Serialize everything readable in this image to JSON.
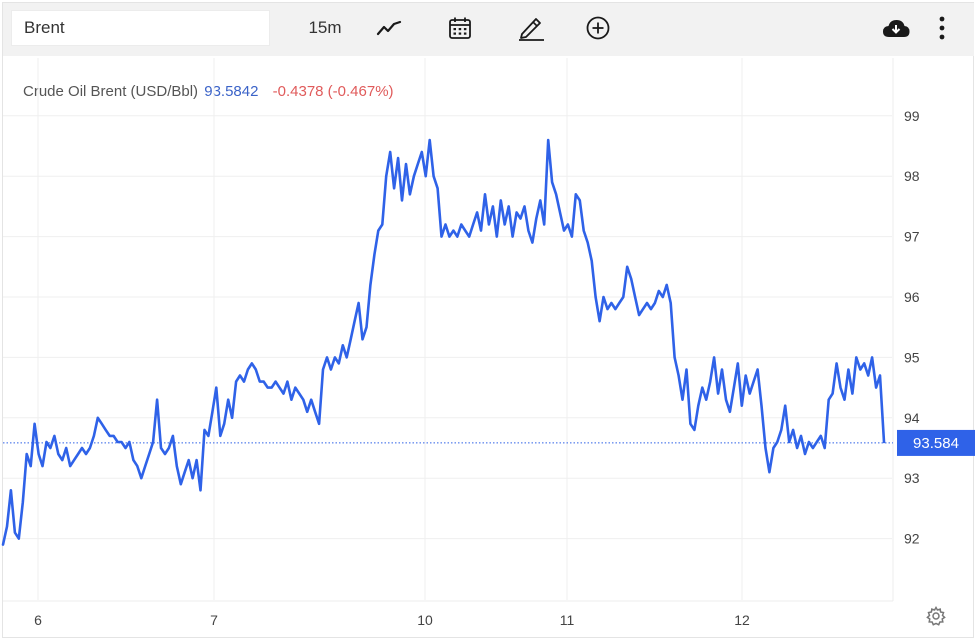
{
  "toolbar": {
    "symbol_value": "Brent",
    "interval_label": "15m",
    "icons": [
      "chart-type-icon",
      "calendar-icon",
      "draw-pencil-icon",
      "add-circle-icon",
      "cloud-download-icon",
      "more-vertical-icon"
    ]
  },
  "legend": {
    "name": "Crude Oil Brent (USD/Bbl)",
    "value": "93.5842",
    "change": "-0.4378 (-0.467%)"
  },
  "colors": {
    "line": "#2f62e8",
    "price_tag": "#2f62e8",
    "change_negative": "#e05b5b",
    "legend_value": "#3b63c8",
    "grid": "#efefef",
    "toolbar_bg": "#f2f2f2"
  },
  "chart_data": {
    "type": "line",
    "title": "Crude Oil Brent (USD/Bbl)",
    "interval": "15m",
    "x_ticks": [
      "6",
      "7",
      "10",
      "11",
      "12"
    ],
    "y_ticks": [
      "92",
      "93",
      "94",
      "95",
      "96",
      "97",
      "98",
      "99"
    ],
    "ylim": [
      91,
      99.7
    ],
    "grid": true,
    "last_price_tag": "93.584",
    "last_price": 93.584,
    "series": [
      {
        "name": "Crude Oil Brent (USD/Bbl)",
        "x_unit": "bar index (15m bars)",
        "points": [
          [
            0,
            91.9
          ],
          [
            1,
            92.2
          ],
          [
            2,
            92.8
          ],
          [
            3,
            92.1
          ],
          [
            4,
            92.0
          ],
          [
            5,
            92.6
          ],
          [
            6,
            93.4
          ],
          [
            7,
            93.2
          ],
          [
            8,
            93.9
          ],
          [
            9,
            93.4
          ],
          [
            10,
            93.2
          ],
          [
            11,
            93.6
          ],
          [
            12,
            93.5
          ],
          [
            13,
            93.7
          ],
          [
            14,
            93.4
          ],
          [
            15,
            93.3
          ],
          [
            16,
            93.5
          ],
          [
            17,
            93.2
          ],
          [
            18,
            93.3
          ],
          [
            19,
            93.4
          ],
          [
            20,
            93.5
          ],
          [
            21,
            93.4
          ],
          [
            22,
            93.5
          ],
          [
            23,
            93.7
          ],
          [
            24,
            94.0
          ],
          [
            25,
            93.9
          ],
          [
            26,
            93.8
          ],
          [
            27,
            93.7
          ],
          [
            28,
            93.7
          ],
          [
            29,
            93.6
          ],
          [
            30,
            93.6
          ],
          [
            31,
            93.5
          ],
          [
            32,
            93.6
          ],
          [
            33,
            93.3
          ],
          [
            34,
            93.2
          ],
          [
            35,
            93.0
          ],
          [
            36,
            93.2
          ],
          [
            37,
            93.4
          ],
          [
            38,
            93.6
          ],
          [
            39,
            94.3
          ],
          [
            40,
            93.5
          ],
          [
            41,
            93.4
          ],
          [
            42,
            93.5
          ],
          [
            43,
            93.7
          ],
          [
            44,
            93.2
          ],
          [
            45,
            92.9
          ],
          [
            46,
            93.1
          ],
          [
            47,
            93.3
          ],
          [
            48,
            93.0
          ],
          [
            49,
            93.3
          ],
          [
            50,
            92.8
          ],
          [
            51,
            93.8
          ],
          [
            52,
            93.7
          ],
          [
            53,
            94.1
          ],
          [
            54,
            94.5
          ],
          [
            55,
            93.7
          ],
          [
            56,
            93.9
          ],
          [
            57,
            94.3
          ],
          [
            58,
            94.0
          ],
          [
            59,
            94.6
          ],
          [
            60,
            94.7
          ],
          [
            61,
            94.6
          ],
          [
            62,
            94.8
          ],
          [
            63,
            94.9
          ],
          [
            64,
            94.8
          ],
          [
            65,
            94.6
          ],
          [
            66,
            94.6
          ],
          [
            67,
            94.5
          ],
          [
            68,
            94.5
          ],
          [
            69,
            94.6
          ],
          [
            70,
            94.5
          ],
          [
            71,
            94.4
          ],
          [
            72,
            94.6
          ],
          [
            73,
            94.3
          ],
          [
            74,
            94.5
          ],
          [
            75,
            94.4
          ],
          [
            76,
            94.3
          ],
          [
            77,
            94.1
          ],
          [
            78,
            94.3
          ],
          [
            79,
            94.1
          ],
          [
            80,
            93.9
          ],
          [
            81,
            94.8
          ],
          [
            82,
            95.0
          ],
          [
            83,
            94.8
          ],
          [
            84,
            95.0
          ],
          [
            85,
            94.9
          ],
          [
            86,
            95.2
          ],
          [
            87,
            95.0
          ],
          [
            88,
            95.3
          ],
          [
            89,
            95.6
          ],
          [
            90,
            95.9
          ],
          [
            91,
            95.3
          ],
          [
            92,
            95.5
          ],
          [
            93,
            96.2
          ],
          [
            94,
            96.7
          ],
          [
            95,
            97.1
          ],
          [
            96,
            97.2
          ],
          [
            97,
            98.0
          ],
          [
            98,
            98.4
          ],
          [
            99,
            97.8
          ],
          [
            100,
            98.3
          ],
          [
            101,
            97.6
          ],
          [
            102,
            98.2
          ],
          [
            103,
            97.7
          ],
          [
            104,
            98.0
          ],
          [
            105,
            98.2
          ],
          [
            106,
            98.4
          ],
          [
            107,
            98.0
          ],
          [
            108,
            98.6
          ],
          [
            109,
            98.0
          ],
          [
            110,
            97.8
          ],
          [
            111,
            97.0
          ],
          [
            112,
            97.2
          ],
          [
            113,
            97.0
          ],
          [
            114,
            97.1
          ],
          [
            115,
            97.0
          ],
          [
            116,
            97.2
          ],
          [
            117,
            97.1
          ],
          [
            118,
            97.0
          ],
          [
            119,
            97.2
          ],
          [
            120,
            97.4
          ],
          [
            121,
            97.1
          ],
          [
            122,
            97.7
          ],
          [
            123,
            97.2
          ],
          [
            124,
            97.5
          ],
          [
            125,
            97.0
          ],
          [
            126,
            97.6
          ],
          [
            127,
            97.2
          ],
          [
            128,
            97.5
          ],
          [
            129,
            97.0
          ],
          [
            130,
            97.4
          ],
          [
            131,
            97.3
          ],
          [
            132,
            97.5
          ],
          [
            133,
            97.1
          ],
          [
            134,
            96.9
          ],
          [
            135,
            97.3
          ],
          [
            136,
            97.6
          ],
          [
            137,
            97.2
          ],
          [
            138,
            98.6
          ],
          [
            139,
            97.9
          ],
          [
            140,
            97.7
          ],
          [
            141,
            97.4
          ],
          [
            142,
            97.1
          ],
          [
            143,
            97.2
          ],
          [
            144,
            97.0
          ],
          [
            145,
            97.7
          ],
          [
            146,
            97.6
          ],
          [
            147,
            97.1
          ],
          [
            148,
            96.9
          ],
          [
            149,
            96.6
          ],
          [
            150,
            96.0
          ],
          [
            151,
            95.6
          ],
          [
            152,
            96.0
          ],
          [
            153,
            95.8
          ],
          [
            154,
            95.9
          ],
          [
            155,
            95.8
          ],
          [
            156,
            95.9
          ],
          [
            157,
            96.0
          ],
          [
            158,
            96.5
          ],
          [
            159,
            96.3
          ],
          [
            160,
            96.0
          ],
          [
            161,
            95.7
          ],
          [
            162,
            95.8
          ],
          [
            163,
            95.9
          ],
          [
            164,
            95.8
          ],
          [
            165,
            95.9
          ],
          [
            166,
            96.1
          ],
          [
            167,
            96.0
          ],
          [
            168,
            96.2
          ],
          [
            169,
            95.9
          ],
          [
            170,
            95.0
          ],
          [
            171,
            94.7
          ],
          [
            172,
            94.3
          ],
          [
            173,
            94.8
          ],
          [
            174,
            93.9
          ],
          [
            175,
            93.8
          ],
          [
            176,
            94.2
          ],
          [
            177,
            94.5
          ],
          [
            178,
            94.3
          ],
          [
            179,
            94.6
          ],
          [
            180,
            95.0
          ],
          [
            181,
            94.4
          ],
          [
            182,
            94.8
          ],
          [
            183,
            94.3
          ],
          [
            184,
            94.1
          ],
          [
            185,
            94.5
          ],
          [
            186,
            94.9
          ],
          [
            187,
            94.2
          ],
          [
            188,
            94.7
          ],
          [
            189,
            94.4
          ],
          [
            190,
            94.6
          ],
          [
            191,
            94.8
          ],
          [
            192,
            94.2
          ],
          [
            193,
            93.5
          ],
          [
            194,
            93.1
          ],
          [
            195,
            93.5
          ],
          [
            196,
            93.6
          ],
          [
            197,
            93.8
          ],
          [
            198,
            94.2
          ],
          [
            199,
            93.6
          ],
          [
            200,
            93.8
          ],
          [
            201,
            93.5
          ],
          [
            202,
            93.7
          ],
          [
            203,
            93.4
          ],
          [
            204,
            93.6
          ],
          [
            205,
            93.5
          ],
          [
            206,
            93.6
          ],
          [
            207,
            93.7
          ],
          [
            208,
            93.5
          ],
          [
            209,
            94.3
          ],
          [
            210,
            94.4
          ],
          [
            211,
            94.9
          ],
          [
            212,
            94.5
          ],
          [
            213,
            94.3
          ],
          [
            214,
            94.8
          ],
          [
            215,
            94.4
          ],
          [
            216,
            95.0
          ],
          [
            217,
            94.8
          ],
          [
            218,
            94.9
          ],
          [
            219,
            94.7
          ],
          [
            220,
            95.0
          ],
          [
            221,
            94.5
          ],
          [
            222,
            94.7
          ],
          [
            223,
            93.6
          ]
        ]
      }
    ]
  }
}
